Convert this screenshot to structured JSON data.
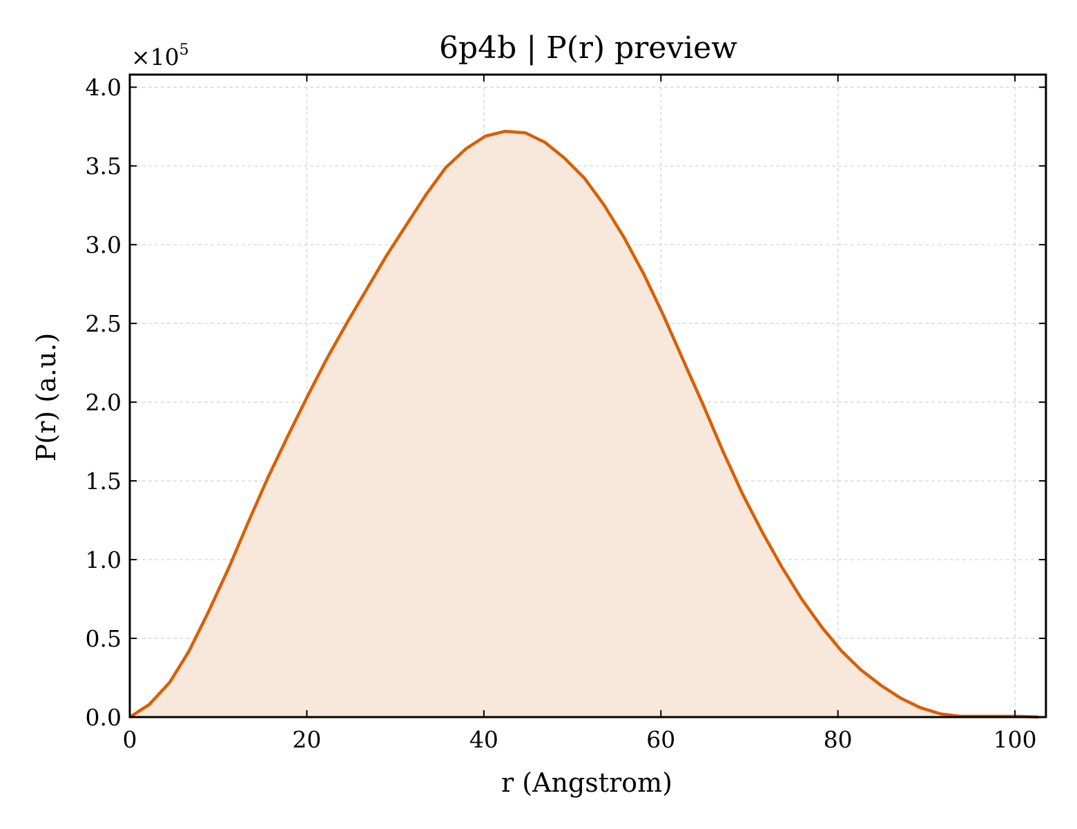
{
  "chart_data": {
    "type": "area",
    "title": "6p4b | P(r) preview",
    "xlabel": "r (Angstrom)",
    "ylabel": "P(r) (a.u.)",
    "y_scale_label_prefix": "×10",
    "y_scale_label_exponent": "5",
    "xlim": [
      0,
      103.5
    ],
    "ylim": [
      0,
      4.08
    ],
    "x_ticks": [
      0,
      20,
      40,
      60,
      80,
      100
    ],
    "x_tick_labels": [
      "0",
      "20",
      "40",
      "60",
      "80",
      "100"
    ],
    "y_ticks": [
      0,
      0.5,
      1.0,
      1.5,
      2.0,
      2.5,
      3.0,
      3.5,
      4.0
    ],
    "y_tick_labels": [
      "0.0",
      "0.5",
      "1.0",
      "1.5",
      "2.0",
      "2.5",
      "3.0",
      "3.5",
      "4.0"
    ],
    "grid": true,
    "colors": {
      "line": "#d95f02",
      "fill": "#f8e8dc"
    },
    "series": [
      {
        "x": [
          0,
          2.2,
          4.5,
          6.7,
          8.9,
          11.2,
          13.4,
          15.6,
          17.9,
          20.1,
          22.3,
          24.6,
          26.8,
          29.0,
          31.3,
          33.5,
          35.7,
          38.0,
          40.2,
          42.4,
          44.7,
          46.9,
          49.1,
          51.4,
          53.6,
          55.8,
          58.1,
          60.3,
          62.5,
          64.8,
          67.0,
          69.2,
          71.5,
          73.7,
          75.9,
          78.2,
          80.4,
          82.6,
          84.9,
          87.1,
          89.3,
          91.6,
          93.8,
          96.0,
          98.3,
          100.5,
          102.7
        ],
        "values": [
          0.0,
          0.08,
          0.22,
          0.42,
          0.67,
          0.95,
          1.24,
          1.52,
          1.79,
          2.04,
          2.28,
          2.51,
          2.72,
          2.93,
          3.13,
          3.32,
          3.49,
          3.61,
          3.69,
          3.72,
          3.71,
          3.65,
          3.55,
          3.42,
          3.25,
          3.05,
          2.81,
          2.55,
          2.27,
          1.98,
          1.69,
          1.42,
          1.17,
          0.95,
          0.75,
          0.57,
          0.42,
          0.3,
          0.2,
          0.12,
          0.06,
          0.02,
          0.005,
          0.005,
          0.005,
          0.005,
          0.0
        ]
      }
    ]
  }
}
